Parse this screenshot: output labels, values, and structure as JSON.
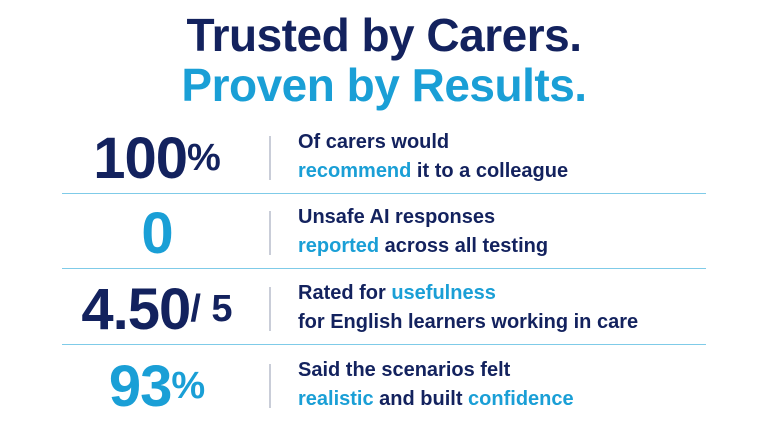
{
  "header": {
    "line1": "Trusted by Carers.",
    "line1_color": "#13225e",
    "line2": "Proven by Results.",
    "line2_color": "#1a9fd6"
  },
  "highlight_color": "#1a9fd6",
  "stats": [
    {
      "number": "100",
      "unit": "%",
      "color": "#13225e",
      "lines": [
        [
          {
            "text": "Of carers would"
          }
        ],
        [
          {
            "text": "recommend",
            "highlight": true
          },
          {
            "text": " it to a colleague"
          }
        ]
      ]
    },
    {
      "number": "0",
      "color": "#1a9fd6",
      "lines": [
        [
          {
            "text": "Unsafe AI responses"
          }
        ],
        [
          {
            "text": "reported",
            "highlight": true
          },
          {
            "text": " across all testing"
          }
        ]
      ]
    },
    {
      "number": "4.50",
      "unit": " / 5",
      "color": "#13225e",
      "lines": [
        [
          {
            "text": "Rated for "
          },
          {
            "text": "usefulness",
            "highlight": true
          }
        ],
        [
          {
            "text": "for English learners working in care"
          }
        ]
      ]
    },
    {
      "number": "93",
      "unit": "%",
      "color": "#1a9fd6",
      "lines": [
        [
          {
            "text": "Said the scenarios felt"
          }
        ],
        [
          {
            "text": "realistic",
            "highlight": true
          },
          {
            "text": " and built "
          },
          {
            "text": "confidence",
            "highlight": true
          }
        ]
      ]
    }
  ]
}
